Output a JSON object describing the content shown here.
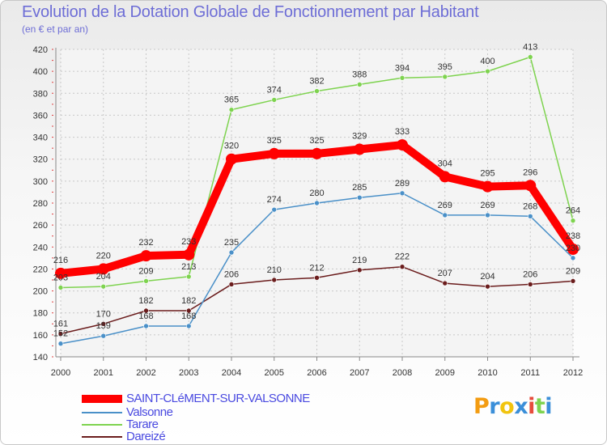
{
  "chart_data": {
    "type": "line",
    "title": "Evolution de la Dotation Globale de Fonctionnement par Habitant",
    "subtitle": "(en € et par an)",
    "xlabel": "",
    "ylabel": "",
    "categories": [
      "2000",
      "2001",
      "2002",
      "2003",
      "2004",
      "2005",
      "2006",
      "2007",
      "2008",
      "2009",
      "2010",
      "2011",
      "2012"
    ],
    "ylim": [
      140,
      420
    ],
    "yticks": [
      140,
      160,
      180,
      200,
      220,
      240,
      260,
      280,
      300,
      320,
      340,
      360,
      380,
      400,
      420
    ],
    "grid": true,
    "legend_position": "bottom-left",
    "series": [
      {
        "name": "SAINT-CLéMENT-SUR-VALSONNE",
        "color": "#ff0000",
        "values": [
          216,
          220,
          232,
          233,
          320,
          325,
          325,
          329,
          333,
          304,
          295,
          296,
          238
        ]
      },
      {
        "name": "Valsonne",
        "color": "#4a90c8",
        "values": [
          152,
          159,
          168,
          168,
          235,
          274,
          280,
          285,
          289,
          269,
          269,
          268,
          230
        ]
      },
      {
        "name": "Tarare",
        "color": "#7ed34f",
        "values": [
          203,
          204,
          209,
          213,
          365,
          374,
          382,
          388,
          394,
          395,
          400,
          413,
          264
        ]
      },
      {
        "name": "Dareizé",
        "color": "#6b1d1d",
        "values": [
          161,
          170,
          182,
          182,
          206,
          210,
          212,
          219,
          222,
          207,
          204,
          206,
          209
        ]
      }
    ]
  },
  "logo": {
    "text": "Proxiti",
    "colors": [
      "#f39c12",
      "#3b8fd9",
      "#f1c40f",
      "#3b8fd9",
      "#e74c3c",
      "#7ed34f",
      "#3b8fd9"
    ]
  }
}
